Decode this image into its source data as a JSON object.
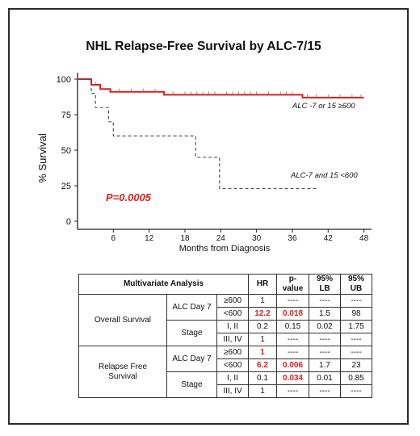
{
  "chart_data": {
    "type": "line",
    "title": "NHL Relapse-Free Survival by ALC-7/15",
    "xlabel": "Months from Diagnosis",
    "ylabel": "% Survival",
    "xticks": [
      "6",
      "12",
      "18",
      "24",
      "30",
      "36",
      "42",
      "48"
    ],
    "yticks": [
      "0",
      "25",
      "50",
      "75",
      "100"
    ],
    "xlim": [
      0,
      49
    ],
    "ylim": [
      0,
      100
    ],
    "annotation": "P=0.0005",
    "colors": {
      "high": "#d62020",
      "low": "#555555",
      "annotation": "#d62020"
    },
    "series": [
      {
        "name": "ALC -7 or 15 ≥600",
        "color": "#d62020",
        "dash": false,
        "steps": [
          [
            0,
            100
          ],
          [
            2.3,
            100
          ],
          [
            2.3,
            96
          ],
          [
            3.8,
            96
          ],
          [
            3.8,
            93
          ],
          [
            5.5,
            93
          ],
          [
            5.5,
            91
          ],
          [
            14.5,
            91
          ],
          [
            14.5,
            89
          ],
          [
            37.7,
            89
          ],
          [
            37.7,
            87
          ],
          [
            48,
            87
          ]
        ],
        "censors": [
          3.0,
          7,
          9,
          11,
          13,
          16,
          18,
          19,
          20,
          21,
          22,
          23,
          25,
          26,
          27,
          28,
          29,
          30,
          32,
          34,
          35,
          36,
          38.5,
          40,
          42,
          44,
          46,
          47.5
        ]
      },
      {
        "name": "ALC-7 and 15 <600",
        "color": "#555555",
        "dash": true,
        "steps": [
          [
            0,
            100
          ],
          [
            2.3,
            100
          ],
          [
            2.3,
            90
          ],
          [
            3.0,
            90
          ],
          [
            3.0,
            80
          ],
          [
            5.2,
            80
          ],
          [
            5.2,
            70
          ],
          [
            6.0,
            70
          ],
          [
            6.0,
            60
          ],
          [
            19.8,
            60
          ],
          [
            19.8,
            45
          ],
          [
            23.8,
            45
          ],
          [
            23.8,
            23
          ],
          [
            40,
            23
          ]
        ],
        "censors": []
      }
    ]
  },
  "table": {
    "headers": {
      "analysis": "Multivariate Analysis",
      "hr": "HR",
      "pvalue": "p-\nvalue",
      "lb": "95%\nLB",
      "ub": "95%\nUB"
    },
    "sections": [
      {
        "name": "Overall Survival",
        "groups": [
          {
            "factor": "ALC Day 7",
            "rows": [
              {
                "level": "≥600",
                "hr": "1",
                "p": "----",
                "lb": "----",
                "ub": "----"
              },
              {
                "level": "<600",
                "hr": "12.2",
                "p": "0.018",
                "lb": "1.5",
                "ub": "98"
              }
            ]
          },
          {
            "factor": "Stage",
            "rows": [
              {
                "level": "I, II",
                "hr": "0.2",
                "p": "0.15",
                "lb": "0.02",
                "ub": "1.75"
              },
              {
                "level": "III, IV",
                "hr": "1",
                "p": "----",
                "lb": "----",
                "ub": "----"
              }
            ]
          }
        ]
      },
      {
        "name": "Relapse Free\nSurvival",
        "groups": [
          {
            "factor": "ALC Day 7",
            "rows": [
              {
                "level": "≥600",
                "hr": "1",
                "p": "----",
                "lb": "----",
                "ub": "----"
              },
              {
                "level": "<600",
                "hr": "6.2",
                "p": "0.006",
                "lb": "1.7",
                "ub": "23"
              }
            ]
          },
          {
            "factor": "Stage",
            "rows": [
              {
                "level": "I, II",
                "hr": "0.1",
                "p": "0.034",
                "lb": "0.01",
                "ub": "0.85"
              },
              {
                "level": "III, IV",
                "hr": "1",
                "p": "----",
                "lb": "----",
                "ub": "----"
              }
            ]
          }
        ]
      }
    ],
    "highlight_color": "#d62020"
  }
}
